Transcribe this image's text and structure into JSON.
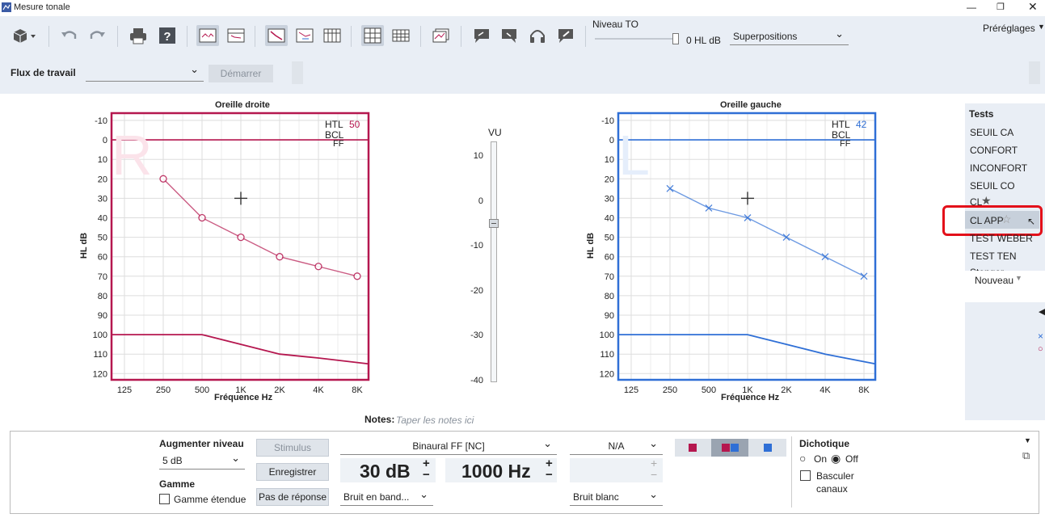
{
  "window": {
    "title": "Mesure tonale"
  },
  "toolbar": {
    "niveau_label": "Niveau TO",
    "niveau_value": "0 HL dB",
    "superpositions": "Superpositions",
    "preglages": "Préréglages"
  },
  "workflow": {
    "label": "Flux de travail",
    "value": "",
    "start": "Démarrer"
  },
  "right_chart": {
    "title": "Oreille droite",
    "letter": "R",
    "htl_label": "HTL",
    "htl_value": "50",
    "bcl_label": "BCL",
    "ff_label": "FF",
    "ylabel": "HL dB",
    "xlabel": "Fréquence Hz",
    "color": "#b5174f"
  },
  "left_chart": {
    "title": "Oreille gauche",
    "letter": "L",
    "htl_label": "HTL",
    "htl_value": "42",
    "bcl_label": "BCL",
    "ff_label": "FF",
    "ylabel": "HL dB",
    "xlabel": "Fréquence Hz",
    "color": "#2f6fd6"
  },
  "chart_data": [
    {
      "type": "line",
      "title": "Oreille droite",
      "xlabel": "Fréquence Hz",
      "ylabel": "HL dB",
      "x_ticks": [
        "125",
        "250",
        "500",
        "1K",
        "2K",
        "4K",
        "8K"
      ],
      "y_ticks": [
        -10,
        0,
        10,
        20,
        30,
        40,
        50,
        60,
        70,
        80,
        90,
        100,
        110,
        120
      ],
      "ylim": [
        -10,
        120
      ],
      "series": [
        {
          "x": [
            "250",
            "500",
            "1K",
            "2K",
            "4K",
            "8K"
          ],
          "values": [
            20,
            40,
            50,
            60,
            65,
            70
          ]
        }
      ],
      "limit_line": {
        "x": [
          "125",
          "500",
          "1K",
          "2K",
          "4K",
          "8K"
        ],
        "values": [
          100,
          100,
          105,
          110,
          112,
          115
        ]
      }
    },
    {
      "type": "line",
      "title": "Oreille gauche",
      "xlabel": "Fréquence Hz",
      "ylabel": "HL dB",
      "x_ticks": [
        "125",
        "250",
        "500",
        "1K",
        "2K",
        "4K",
        "8K"
      ],
      "y_ticks": [
        -10,
        0,
        10,
        20,
        30,
        40,
        50,
        60,
        70,
        80,
        90,
        100,
        110,
        120
      ],
      "ylim": [
        -10,
        120
      ],
      "series": [
        {
          "x": [
            "250",
            "500",
            "1K",
            "2K",
            "4K",
            "8K"
          ],
          "values": [
            25,
            35,
            40,
            50,
            60,
            70
          ]
        }
      ],
      "limit_line": {
        "x": [
          "125",
          "500",
          "1K",
          "2K",
          "4K",
          "8K"
        ],
        "values": [
          100,
          100,
          100,
          105,
          110,
          115
        ]
      }
    }
  ],
  "vu": {
    "label": "VU",
    "ticks": [
      "10",
      "0",
      "-10",
      "-20",
      "-30",
      "-40"
    ],
    "level": -5
  },
  "tests": {
    "heading": "Tests",
    "items": [
      "SEUIL CA",
      "CONFORT",
      "INCONFORT",
      "SEUIL CO",
      "CL",
      "CL APP",
      "TEST WEBER",
      "TEST TEN",
      "Stenger"
    ],
    "new": "Nouveau"
  },
  "notes": {
    "label": "Notes:",
    "placeholder": "Taper les notes ici"
  },
  "bottom": {
    "augmenter": "Augmenter niveau",
    "step": "5 dB",
    "gamme": "Gamme",
    "gamme_etendue": "Gamme étendue",
    "stimulus": "Stimulus",
    "enregistrer": "Enregistrer",
    "pas_reponse": "Pas de réponse",
    "transducer": "Binaural FF [NC]",
    "level": "30 dB",
    "freq": "1000 Hz",
    "noise1": "Bruit en band...",
    "na": "N/A",
    "noise2": "Bruit blanc",
    "dichotique": "Dichotique",
    "on": "On",
    "off": "Off",
    "basculer": "Basculer",
    "canaux": "canaux"
  }
}
